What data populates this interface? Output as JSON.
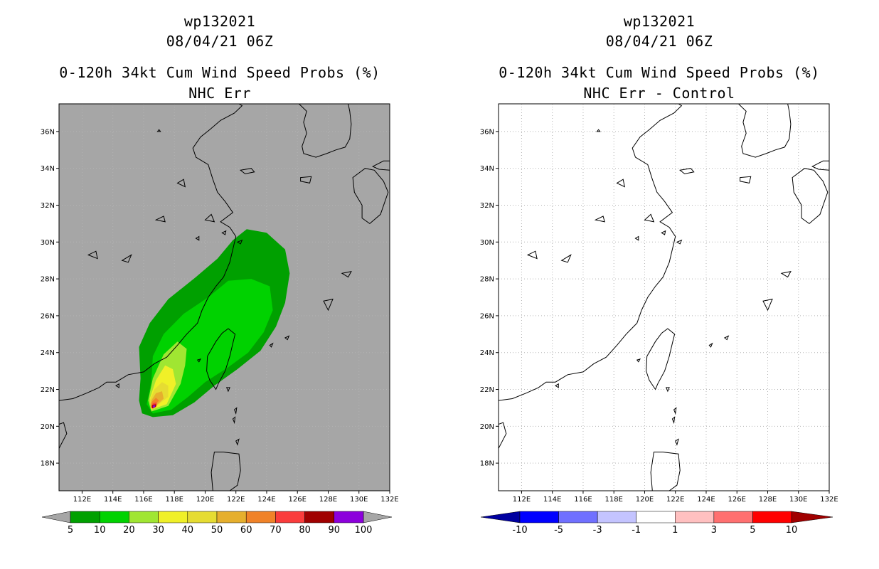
{
  "colors": {
    "land_gray": "#a6a6a6",
    "ocean_white": "#ffffff",
    "prob_fills": [
      "#00a000",
      "#00d200",
      "#a0e632",
      "#f0f028",
      "#e6dc32",
      "#e6af2d",
      "#f08228",
      "#fa3c3c",
      "#a00000",
      "#8c00dc"
    ],
    "diff_fills": [
      "#0000a0",
      "#0000ff",
      "#7070ff",
      "#c4c4ff",
      "#ffffff",
      "#ffc0c0",
      "#ff7070",
      "#ff0000",
      "#a00000"
    ]
  },
  "left_panel": {
    "storm_id": "wp132021",
    "datetime": "08/04/21 06Z",
    "product": "0-120h 34kt Cum Wind Speed Probs (%)",
    "subtitle": "NHC Err",
    "colorbar_labels": [
      "5",
      "10",
      "20",
      "30",
      "40",
      "50",
      "60",
      "70",
      "80",
      "90",
      "100"
    ]
  },
  "right_panel": {
    "storm_id": "wp132021",
    "datetime": "08/04/21 06Z",
    "product": "0-120h 34kt Cum Wind Speed Probs (%)",
    "subtitle": "NHC Err - Control",
    "colorbar_labels": [
      "-10",
      "-5",
      "-3",
      "-1",
      "1",
      "3",
      "5",
      "10"
    ]
  },
  "map": {
    "lon_range": [
      110.5,
      132
    ],
    "lat_range": [
      16.5,
      37.5
    ],
    "lon_ticks": [
      "112E",
      "114E",
      "116E",
      "118E",
      "120E",
      "122E",
      "124E",
      "126E",
      "128E",
      "130E",
      "132E"
    ],
    "lat_ticks": [
      "18N",
      "20N",
      "22N",
      "24N",
      "26N",
      "28N",
      "30N",
      "32N",
      "34N",
      "36N"
    ],
    "grid": true,
    "grid_style": "dotted"
  }
}
